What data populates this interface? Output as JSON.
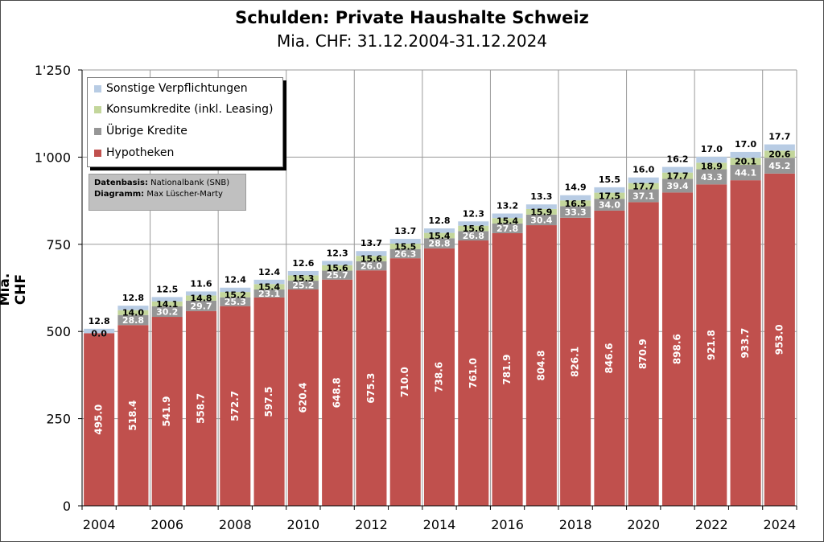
{
  "title": "Schulden: Private Haushalte Schweiz",
  "subtitle": "Mia. CHF: 31.12.2004-31.12.2024",
  "note": {
    "line1_label": "Datenbasis:",
    "line1_value": "Nationalbank (SNB)",
    "line2_label": "Diagramm:",
    "line2_value": "Max Lüscher-Marty"
  },
  "legend": [
    {
      "key": "sonstige",
      "label": "Sonstige Verpflichtungen",
      "color": "#b8cce4"
    },
    {
      "key": "konsum",
      "label": "Konsumkredite (inkl. Leasing)",
      "color": "#c3d69b"
    },
    {
      "key": "uebrige",
      "label": "Übrige Kredite",
      "color": "#969696"
    },
    {
      "key": "hypo",
      "label": "Hypotheken",
      "color": "#c0504d"
    }
  ],
  "chart_data": {
    "type": "bar",
    "stacked": true,
    "ylabel": "Mia. CHF",
    "ylim": [
      0,
      1250
    ],
    "yticks": [
      "0",
      "250",
      "500",
      "750",
      "1'000",
      "1'250"
    ],
    "ytick_values": [
      0,
      250,
      500,
      750,
      1000,
      1250
    ],
    "grid": true,
    "legend_position": "top-left",
    "categories": [
      "2004",
      "2005",
      "2006",
      "2007",
      "2008",
      "2009",
      "2010",
      "2011",
      "2012",
      "2013",
      "2014",
      "2015",
      "2016",
      "2017",
      "2018",
      "2019",
      "2020",
      "2021",
      "2022",
      "2023",
      "2024"
    ],
    "xtick_labels": [
      "2004",
      "",
      "2006",
      "",
      "2008",
      "",
      "2010",
      "",
      "2012",
      "",
      "2014",
      "",
      "2016",
      "",
      "2018",
      "",
      "2020",
      "",
      "2022",
      "",
      "2024"
    ],
    "series": [
      {
        "name": "Hypotheken",
        "color": "#c0504d",
        "values": [
          495.0,
          518.4,
          541.9,
          558.7,
          572.7,
          597.5,
          620.4,
          648.8,
          675.3,
          710.0,
          738.6,
          761.0,
          781.9,
          804.8,
          826.1,
          846.6,
          870.9,
          898.6,
          921.8,
          933.7,
          953.0
        ]
      },
      {
        "name": "Übrige Kredite",
        "color": "#969696",
        "values": [
          0.0,
          28.8,
          30.2,
          29.7,
          25.3,
          23.1,
          25.2,
          25.7,
          26.0,
          26.3,
          28.8,
          26.8,
          27.8,
          30.4,
          33.3,
          34.0,
          37.1,
          39.4,
          43.3,
          44.1,
          45.2
        ]
      },
      {
        "name": "Konsumkredite (inkl. Leasing)",
        "color": "#c3d69b",
        "values": [
          0.0,
          14.0,
          14.1,
          14.8,
          15.2,
          15.4,
          15.3,
          15.6,
          15.6,
          15.5,
          15.4,
          15.6,
          15.4,
          15.9,
          16.5,
          17.5,
          17.7,
          17.7,
          18.9,
          20.1,
          20.6
        ]
      },
      {
        "name": "Sonstige Verpflichtungen",
        "color": "#b8cce4",
        "values": [
          12.8,
          12.8,
          12.5,
          11.6,
          12.4,
          12.4,
          12.6,
          12.3,
          13.7,
          13.7,
          12.8,
          12.3,
          13.2,
          13.3,
          14.9,
          15.5,
          16.0,
          16.2,
          17.0,
          17.0,
          17.7
        ]
      }
    ]
  }
}
